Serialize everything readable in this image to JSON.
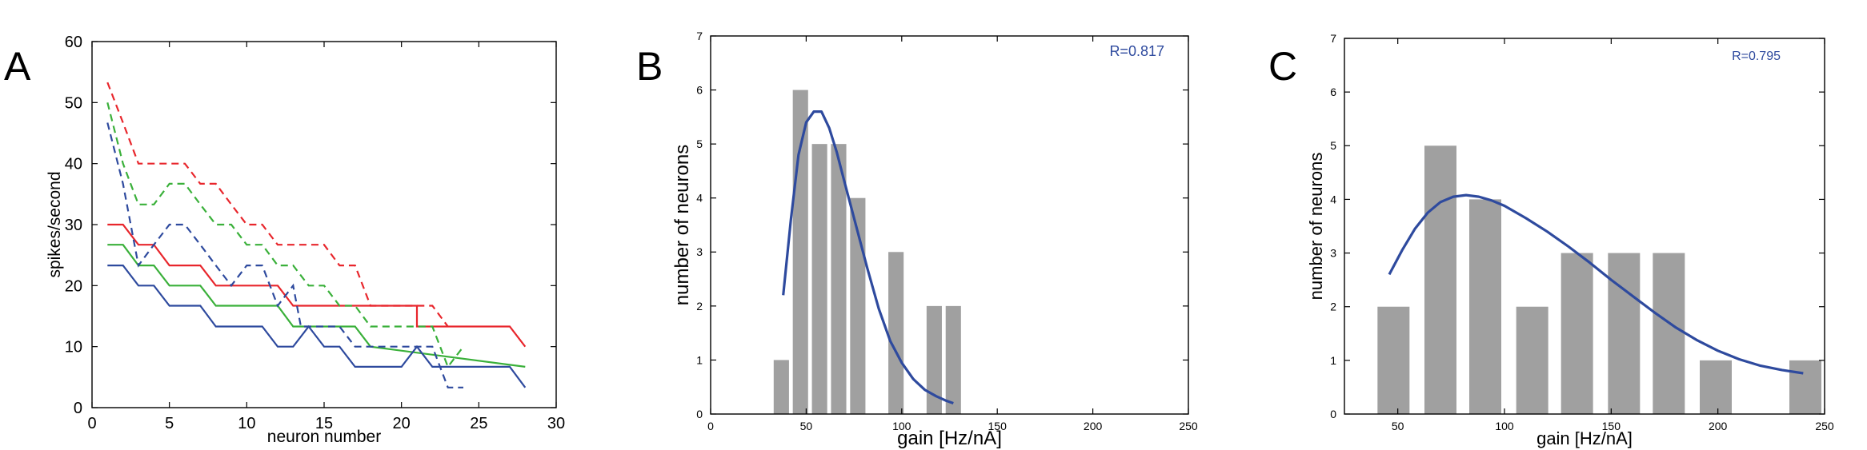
{
  "chart_data": [
    {
      "panel": "A",
      "type": "line",
      "xlabel": "neuron number",
      "ylabel": "spikes/second",
      "xlim": [
        0,
        30
      ],
      "ylim": [
        0,
        60
      ],
      "xticks": [
        0,
        5,
        10,
        15,
        20,
        25,
        30
      ],
      "yticks": [
        0,
        10,
        20,
        30,
        40,
        50,
        60
      ],
      "grid": false,
      "series": [
        {
          "color": "#e8262c",
          "dash": "solid",
          "points": [
            [
              1,
              30
            ],
            [
              2,
              30
            ],
            [
              3,
              26.7
            ],
            [
              4,
              26.7
            ],
            [
              5,
              23.3
            ],
            [
              7,
              23.3
            ],
            [
              8,
              20
            ],
            [
              12,
              20
            ],
            [
              13,
              16.7
            ],
            [
              17,
              16.7
            ],
            [
              21,
              16.7
            ],
            [
              21,
              13.3
            ],
            [
              27,
              13.3
            ],
            [
              28,
              10
            ]
          ]
        },
        {
          "color": "#e8262c",
          "dash": "dashed",
          "points": [
            [
              1,
              53.3
            ],
            [
              2,
              46.7
            ],
            [
              3,
              40
            ],
            [
              5,
              40
            ],
            [
              6,
              40
            ],
            [
              7,
              36.7
            ],
            [
              8,
              36.7
            ],
            [
              9,
              33.3
            ],
            [
              10,
              30
            ],
            [
              11,
              30
            ],
            [
              12,
              26.7
            ],
            [
              15,
              26.7
            ],
            [
              16,
              23.3
            ],
            [
              17,
              23.3
            ],
            [
              18,
              16.7
            ],
            [
              22,
              16.7
            ],
            [
              23,
              13.3
            ]
          ]
        },
        {
          "color": "#3ab03a",
          "dash": "solid",
          "points": [
            [
              1,
              26.7
            ],
            [
              2,
              26.7
            ],
            [
              3,
              23.3
            ],
            [
              4,
              23.3
            ],
            [
              5,
              20
            ],
            [
              7,
              20
            ],
            [
              8,
              16.7
            ],
            [
              12,
              16.7
            ],
            [
              13,
              13.3
            ],
            [
              17,
              13.3
            ],
            [
              18,
              10
            ],
            [
              28,
              6.7
            ]
          ]
        },
        {
          "color": "#3ab03a",
          "dash": "dashed",
          "points": [
            [
              1,
              50
            ],
            [
              2,
              40
            ],
            [
              3,
              33.3
            ],
            [
              4,
              33.3
            ],
            [
              5,
              36.7
            ],
            [
              6,
              36.7
            ],
            [
              7,
              33.3
            ],
            [
              8,
              30
            ],
            [
              9,
              30
            ],
            [
              10,
              26.7
            ],
            [
              11,
              26.7
            ],
            [
              12,
              23.3
            ],
            [
              13,
              23.3
            ],
            [
              14,
              20
            ],
            [
              15,
              20
            ],
            [
              16,
              16.7
            ],
            [
              17,
              16.7
            ],
            [
              18,
              13.3
            ],
            [
              22,
              13.3
            ],
            [
              23,
              6.7
            ],
            [
              24,
              10
            ]
          ]
        },
        {
          "color": "#2e4a9e",
          "dash": "solid",
          "points": [
            [
              1,
              23.3
            ],
            [
              2,
              23.3
            ],
            [
              3,
              20
            ],
            [
              4,
              20
            ],
            [
              5,
              16.7
            ],
            [
              7,
              16.7
            ],
            [
              8,
              13.3
            ],
            [
              11,
              13.3
            ],
            [
              12,
              10
            ],
            [
              13,
              10
            ],
            [
              14,
              13.3
            ],
            [
              15,
              10
            ],
            [
              16,
              10
            ],
            [
              17,
              6.7
            ],
            [
              20,
              6.7
            ],
            [
              21,
              10
            ],
            [
              22,
              6.7
            ],
            [
              27,
              6.7
            ],
            [
              28,
              3.3
            ]
          ]
        },
        {
          "color": "#2e4a9e",
          "dash": "dashed",
          "points": [
            [
              1,
              46.7
            ],
            [
              2,
              36.7
            ],
            [
              3,
              23.3
            ],
            [
              4,
              26.7
            ],
            [
              5,
              30
            ],
            [
              6,
              30
            ],
            [
              7,
              26.7
            ],
            [
              8,
              23.3
            ],
            [
              9,
              20
            ],
            [
              10,
              23.3
            ],
            [
              11,
              23.3
            ],
            [
              12,
              16.7
            ],
            [
              13,
              20
            ],
            [
              13.5,
              13.3
            ],
            [
              14,
              13.3
            ],
            [
              16,
              13.3
            ],
            [
              17,
              10
            ],
            [
              20,
              10
            ],
            [
              21,
              10
            ],
            [
              22,
              10
            ],
            [
              23,
              3.3
            ],
            [
              24,
              3.3
            ]
          ]
        }
      ]
    },
    {
      "panel": "B",
      "type": "bar",
      "xlabel": "gain [Hz/nA]",
      "ylabel": "number of neurons",
      "xlim": [
        0,
        250
      ],
      "ylim": [
        0,
        7
      ],
      "xticks": [
        0,
        50,
        100,
        150,
        200,
        250
      ],
      "yticks": [
        0,
        1,
        2,
        3,
        4,
        5,
        6,
        7
      ],
      "bar_width": 8,
      "bars": [
        {
          "x": 37,
          "value": 1
        },
        {
          "x": 47,
          "value": 6
        },
        {
          "x": 57,
          "value": 5
        },
        {
          "x": 67,
          "value": 5
        },
        {
          "x": 77,
          "value": 4
        },
        {
          "x": 97,
          "value": 3
        },
        {
          "x": 117,
          "value": 2
        },
        {
          "x": 127,
          "value": 2
        }
      ],
      "fit": {
        "color": "#2e4a9e",
        "points": [
          [
            38,
            2.2
          ],
          [
            42,
            3.6
          ],
          [
            46,
            4.8
          ],
          [
            50,
            5.4
          ],
          [
            54,
            5.6
          ],
          [
            58,
            5.6
          ],
          [
            62,
            5.3
          ],
          [
            66,
            4.85
          ],
          [
            70,
            4.3
          ],
          [
            76,
            3.5
          ],
          [
            82,
            2.7
          ],
          [
            88,
            1.95
          ],
          [
            94,
            1.35
          ],
          [
            100,
            0.95
          ],
          [
            106,
            0.65
          ],
          [
            112,
            0.45
          ],
          [
            118,
            0.33
          ],
          [
            123,
            0.25
          ],
          [
            127,
            0.2
          ]
        ]
      },
      "annotation": "R=0.817"
    },
    {
      "panel": "C",
      "type": "bar",
      "xlabel": "gain [Hz/nA]",
      "ylabel": "number of neurons",
      "xlim": [
        25,
        250
      ],
      "ylim": [
        0,
        7
      ],
      "xticks": [
        50,
        100,
        150,
        200,
        250
      ],
      "yticks": [
        0,
        1,
        2,
        3,
        4,
        5,
        6,
        7
      ],
      "bar_width": 15,
      "bars": [
        {
          "x": 48,
          "value": 2
        },
        {
          "x": 70,
          "value": 5
        },
        {
          "x": 91,
          "value": 4
        },
        {
          "x": 113,
          "value": 2
        },
        {
          "x": 134,
          "value": 3
        },
        {
          "x": 156,
          "value": 3
        },
        {
          "x": 177,
          "value": 3
        },
        {
          "x": 199,
          "value": 1
        },
        {
          "x": 241,
          "value": 1
        }
      ],
      "fit": {
        "color": "#2e4a9e",
        "points": [
          [
            46,
            2.6
          ],
          [
            52,
            3.05
          ],
          [
            58,
            3.45
          ],
          [
            64,
            3.75
          ],
          [
            70,
            3.95
          ],
          [
            76,
            4.05
          ],
          [
            82,
            4.08
          ],
          [
            88,
            4.05
          ],
          [
            94,
            3.98
          ],
          [
            100,
            3.88
          ],
          [
            110,
            3.65
          ],
          [
            120,
            3.4
          ],
          [
            130,
            3.12
          ],
          [
            140,
            2.82
          ],
          [
            150,
            2.5
          ],
          [
            160,
            2.2
          ],
          [
            170,
            1.9
          ],
          [
            180,
            1.62
          ],
          [
            190,
            1.38
          ],
          [
            200,
            1.18
          ],
          [
            210,
            1.02
          ],
          [
            220,
            0.9
          ],
          [
            230,
            0.82
          ],
          [
            240,
            0.76
          ]
        ]
      },
      "annotation": "R=0.795"
    }
  ],
  "panels": {
    "A": "A",
    "B": "B",
    "C": "C"
  }
}
